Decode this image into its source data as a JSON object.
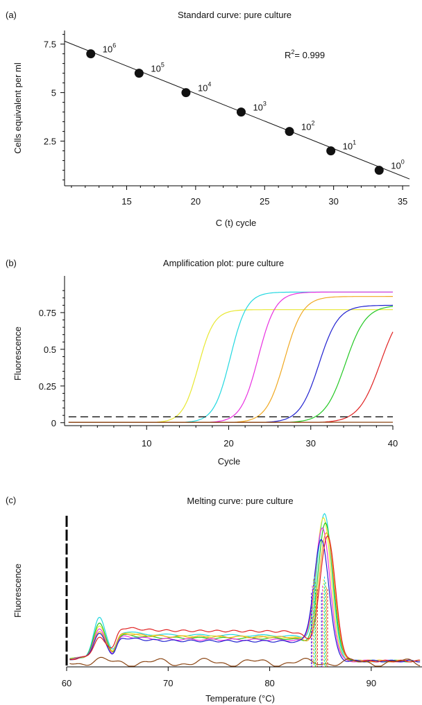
{
  "chart_data": [
    {
      "type": "scatter",
      "panel_label": "(a)",
      "title": "Standard curve: pure culture",
      "xlabel": "C (t) cycle",
      "ylabel": "Cells equivalent per ml",
      "xlim": [
        10.5,
        35.5
      ],
      "ylim": [
        0.2,
        8.2
      ],
      "xticks": [
        15,
        20,
        25,
        30,
        35
      ],
      "yticks": [
        2.5,
        5,
        7.5
      ],
      "ytick_labels": [
        "2.5",
        "5",
        "7.5"
      ],
      "points": [
        {
          "x": 12.4,
          "y": 7.0,
          "label_base": "10",
          "label_exp": "6"
        },
        {
          "x": 15.9,
          "y": 6.0,
          "label_base": "10",
          "label_exp": "5"
        },
        {
          "x": 19.3,
          "y": 5.0,
          "label_base": "10",
          "label_exp": "4"
        },
        {
          "x": 23.3,
          "y": 4.0,
          "label_base": "10",
          "label_exp": "3"
        },
        {
          "x": 26.8,
          "y": 3.0,
          "label_base": "10",
          "label_exp": "2"
        },
        {
          "x": 29.8,
          "y": 2.0,
          "label_base": "10",
          "label_exp": "1"
        },
        {
          "x": 33.3,
          "y": 1.0,
          "label_base": "10",
          "label_exp": "0"
        }
      ],
      "fit_line": {
        "x": [
          10.5,
          35.5
        ],
        "y": [
          7.65,
          0.55
        ]
      },
      "annotation": {
        "prefix": "R",
        "sup": "2",
        "text": "= 0.999"
      }
    },
    {
      "type": "line",
      "panel_label": "(b)",
      "title": "Amplification plot: pure culture",
      "xlabel": "Cycle",
      "ylabel": "Fluorescence",
      "xlim": [
        0,
        40
      ],
      "ylim": [
        -0.02,
        1.0
      ],
      "xticks": [
        10,
        20,
        30,
        40
      ],
      "yticks": [
        0,
        0.25,
        0.5,
        0.75
      ],
      "ytick_labels": [
        "0",
        "0.25",
        "0.5",
        "0.75"
      ],
      "threshold": 0.04,
      "series": [
        {
          "color": "#e8e830",
          "midpoint": 16.3,
          "slope": 1.05,
          "plateau": 0.77
        },
        {
          "color": "#22d8e0",
          "midpoint": 20.2,
          "slope": 1.0,
          "plateau": 0.89
        },
        {
          "color": "#e830e0",
          "midpoint": 23.6,
          "slope": 0.95,
          "plateau": 0.89
        },
        {
          "color": "#f0a820",
          "midpoint": 26.8,
          "slope": 0.9,
          "plateau": 0.86
        },
        {
          "color": "#2020d0",
          "midpoint": 31.0,
          "slope": 0.85,
          "plateau": 0.8
        },
        {
          "color": "#22c822",
          "midpoint": 34.2,
          "slope": 0.8,
          "plateau": 0.8
        },
        {
          "color": "#e02020",
          "midpoint": 38.5,
          "slope": 0.75,
          "plateau": 0.82
        },
        {
          "color": "#8b4513",
          "midpoint": 80,
          "slope": 1,
          "plateau": 0.0
        }
      ]
    },
    {
      "type": "line",
      "panel_label": "(c)",
      "title": "Melting curve: pure culture",
      "xlabel": "Temperature (°C)",
      "ylabel": "Fluorescence",
      "xlim": [
        60,
        95
      ],
      "ylim": [
        0,
        1
      ],
      "xticks": [
        60,
        70,
        80,
        90
      ],
      "series": [
        {
          "color": "#22d8e0",
          "peak_t": 85.4,
          "peak_h": 1.0,
          "bump_h": 0.26,
          "base": 0.18
        },
        {
          "color": "#e8e830",
          "peak_t": 85.3,
          "peak_h": 0.97,
          "bump_h": 0.2,
          "base": 0.17
        },
        {
          "color": "#22c822",
          "peak_t": 85.5,
          "peak_h": 0.94,
          "bump_h": 0.22,
          "base": 0.16
        },
        {
          "color": "#e830e0",
          "peak_t": 85.2,
          "peak_h": 0.9,
          "bump_h": 0.18,
          "base": 0.15
        },
        {
          "color": "#f0a820",
          "peak_t": 85.6,
          "peak_h": 0.88,
          "bump_h": 0.16,
          "base": 0.17
        },
        {
          "color": "#2020d0",
          "peak_t": 85.1,
          "peak_h": 0.82,
          "bump_h": 0.15,
          "base": 0.14
        },
        {
          "color": "#e02020",
          "peak_t": 85.7,
          "peak_h": 0.86,
          "bump_h": 0.12,
          "base": 0.21
        },
        {
          "color": "#8b4513",
          "peak_t": 85.0,
          "peak_h": 0.0,
          "bump_h": 0.0,
          "base": 0.03
        }
      ]
    }
  ]
}
